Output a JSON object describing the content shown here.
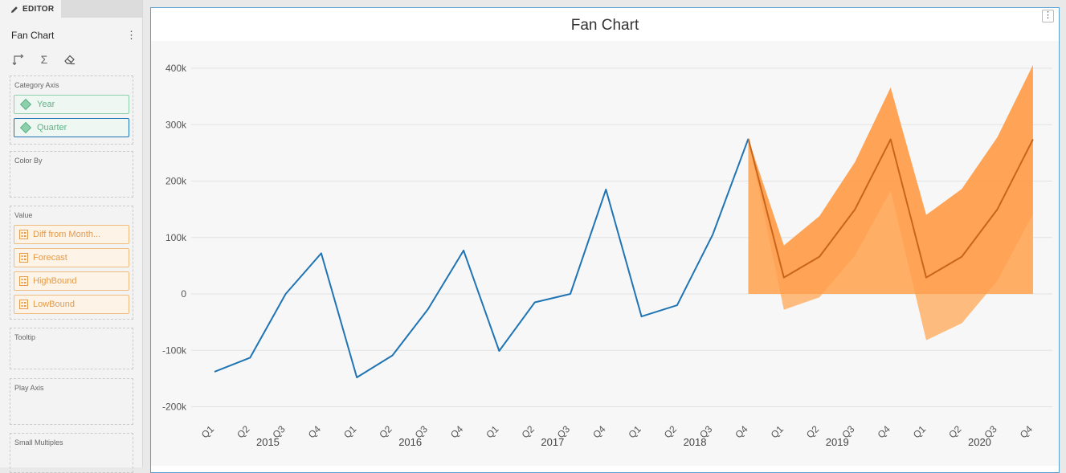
{
  "editor": {
    "tab_label": "EDITOR",
    "viz_title": "Fan Chart",
    "menu_glyph": "⋮",
    "tools": [
      {
        "icon": "swap-axes-icon"
      },
      {
        "icon": "sigma-icon",
        "glyph": "Σ"
      },
      {
        "icon": "eraser-icon"
      }
    ],
    "wells": {
      "category_axis": {
        "label": "Category Axis",
        "fields": [
          "Year",
          "Quarter"
        ]
      },
      "color_by": {
        "label": "Color By"
      },
      "value": {
        "label": "Value",
        "fields": [
          "Diff from Month...",
          "Forecast",
          "HighBound",
          "LowBound"
        ]
      },
      "tooltip": {
        "label": "Tooltip"
      },
      "play_axis": {
        "label": "Play Axis"
      },
      "small_multiples": {
        "label": "Small Multiples"
      }
    }
  },
  "chart": {
    "menu_glyph": "⋮"
  },
  "colors": {
    "actual_line": "#1f74b4",
    "forecast_line": "#c8651a",
    "band_outer": "#ffb068",
    "band_inner": "#ff9a45",
    "pill_category": "#5bb485",
    "pill_value": "#e39b4d"
  },
  "chart_data": {
    "type": "area",
    "title": "Fan Chart",
    "xlabel": "",
    "ylabel": "",
    "ylim": [
      -200000,
      400000
    ],
    "y_ticks": [
      "-200k",
      "-100k",
      "0",
      "100k",
      "200k",
      "300k",
      "400k"
    ],
    "y_tick_values": [
      -200000,
      -100000,
      0,
      100000,
      200000,
      300000,
      400000
    ],
    "grid": true,
    "years": [
      "2015",
      "2016",
      "2017",
      "2018",
      "2019",
      "2020"
    ],
    "quarters": [
      "Q1",
      "Q2",
      "Q3",
      "Q4"
    ],
    "categories": [
      "2015 Q1",
      "2015 Q2",
      "2015 Q3",
      "2015 Q4",
      "2016 Q1",
      "2016 Q2",
      "2016 Q3",
      "2016 Q4",
      "2017 Q1",
      "2017 Q2",
      "2017 Q3",
      "2017 Q4",
      "2018 Q1",
      "2018 Q2",
      "2018 Q3",
      "2018 Q4",
      "2019 Q1",
      "2019 Q2",
      "2019 Q3",
      "2019 Q4",
      "2020 Q1",
      "2020 Q2",
      "2020 Q3",
      "2020 Q4"
    ],
    "series": [
      {
        "name": "Diff from Month...",
        "values": [
          -138000,
          -113000,
          0,
          72000,
          -148000,
          -109000,
          -27000,
          77000,
          -101000,
          -15000,
          0,
          185000,
          -40000,
          -20000,
          105000,
          275000,
          null,
          null,
          null,
          null,
          null,
          null,
          null,
          null
        ]
      },
      {
        "name": "Forecast",
        "values": [
          null,
          null,
          null,
          null,
          null,
          null,
          null,
          null,
          null,
          null,
          null,
          null,
          null,
          null,
          null,
          275000,
          29000,
          66000,
          150000,
          274000,
          29000,
          66000,
          150000,
          274000
        ]
      },
      {
        "name": "HighBound",
        "values": [
          null,
          null,
          null,
          null,
          null,
          null,
          null,
          null,
          null,
          null,
          null,
          null,
          null,
          null,
          null,
          275000,
          86000,
          138000,
          234000,
          366000,
          140000,
          186000,
          278000,
          406000
        ]
      },
      {
        "name": "LowBound",
        "values": [
          null,
          null,
          null,
          null,
          null,
          null,
          null,
          null,
          null,
          null,
          null,
          null,
          null,
          null,
          null,
          275000,
          -28000,
          -6000,
          68000,
          183000,
          -82000,
          -52000,
          23000,
          142000
        ]
      }
    ]
  }
}
